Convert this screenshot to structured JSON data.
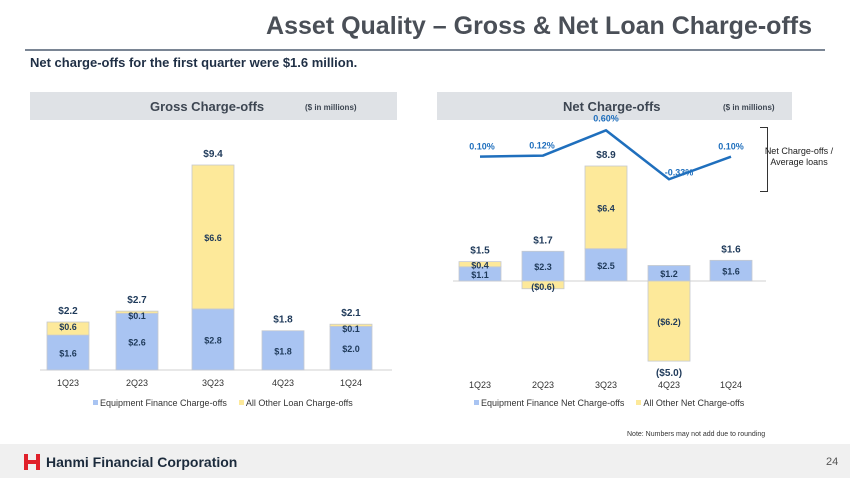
{
  "title": "Asset Quality – Gross & Net Loan Charge-offs",
  "subtitle": "Net charge-offs for the first quarter were $1.6 million.",
  "gross": {
    "header": "Gross Charge-offs",
    "units": "($ in millions)"
  },
  "net": {
    "header": "Net Charge-offs",
    "units": "($ in millions)",
    "ratio_label": "Net Charge-offs / Average loans"
  },
  "note": "Note: Numbers may not add due to rounding",
  "footer": {
    "company": "Hanmi Financial Corporation",
    "page_number": "24"
  },
  "colors": {
    "equipment": "#a9c4f2",
    "other": "#fde99a",
    "line": "#1f6fbd",
    "logo": "#e0202a"
  },
  "chart_data": [
    {
      "type": "bar",
      "stacked": true,
      "categories": [
        "1Q23",
        "2Q23",
        "3Q23",
        "4Q23",
        "1Q24"
      ],
      "series": [
        {
          "name": "Equipment Finance Charge-offs",
          "values": [
            1.6,
            2.6,
            2.8,
            1.8,
            2.0
          ],
          "labels": [
            "$1.6",
            "$2.6",
            "$2.8",
            "$1.8",
            "$2.0"
          ]
        },
        {
          "name": "All Other Loan Charge-offs",
          "values": [
            0.6,
            0.1,
            6.6,
            0.0,
            0.1
          ],
          "labels": [
            "$0.6",
            "$0.1",
            "$6.6",
            "",
            "$0.1"
          ]
        }
      ],
      "totals": [
        2.2,
        2.7,
        9.4,
        1.8,
        2.1
      ],
      "total_labels": [
        "$2.2",
        "$2.7",
        "$9.4",
        "$1.8",
        "$2.1"
      ],
      "ylim": [
        0,
        9.4
      ],
      "legend_position": "bottom"
    },
    {
      "type": "bar",
      "stacked": true,
      "categories": [
        "1Q23",
        "2Q23",
        "3Q23",
        "4Q23",
        "1Q24"
      ],
      "series": [
        {
          "name": "Equipment Finance Net Charge-offs",
          "values": [
            1.1,
            2.3,
            2.5,
            1.2,
            1.6
          ],
          "labels": [
            "$1.1",
            "$2.3",
            "$2.5",
            "$1.2",
            "$1.6"
          ]
        },
        {
          "name": "All Other Net Charge-offs",
          "values": [
            0.4,
            -0.6,
            6.4,
            -6.2,
            0.0
          ],
          "labels": [
            "$0.4",
            "($0.6)",
            "$6.4",
            "($6.2)",
            ""
          ]
        }
      ],
      "totals": [
        1.5,
        1.7,
        8.9,
        -5.0,
        1.6
      ],
      "total_labels": [
        "$1.5",
        "$1.7",
        "$8.9",
        "($5.0)",
        "$1.6"
      ],
      "ylim": [
        -6.2,
        8.9
      ],
      "legend_position": "bottom"
    },
    {
      "type": "line",
      "categories": [
        "1Q23",
        "2Q23",
        "3Q23",
        "4Q23",
        "1Q24"
      ],
      "series": [
        {
          "name": "Net Charge-offs / Average loans",
          "values": [
            0.1,
            0.12,
            0.6,
            -0.33,
            0.1
          ],
          "labels": [
            "0.10%",
            "0.12%",
            "0.60%",
            "-0.33%",
            "0.10%"
          ]
        }
      ]
    }
  ]
}
